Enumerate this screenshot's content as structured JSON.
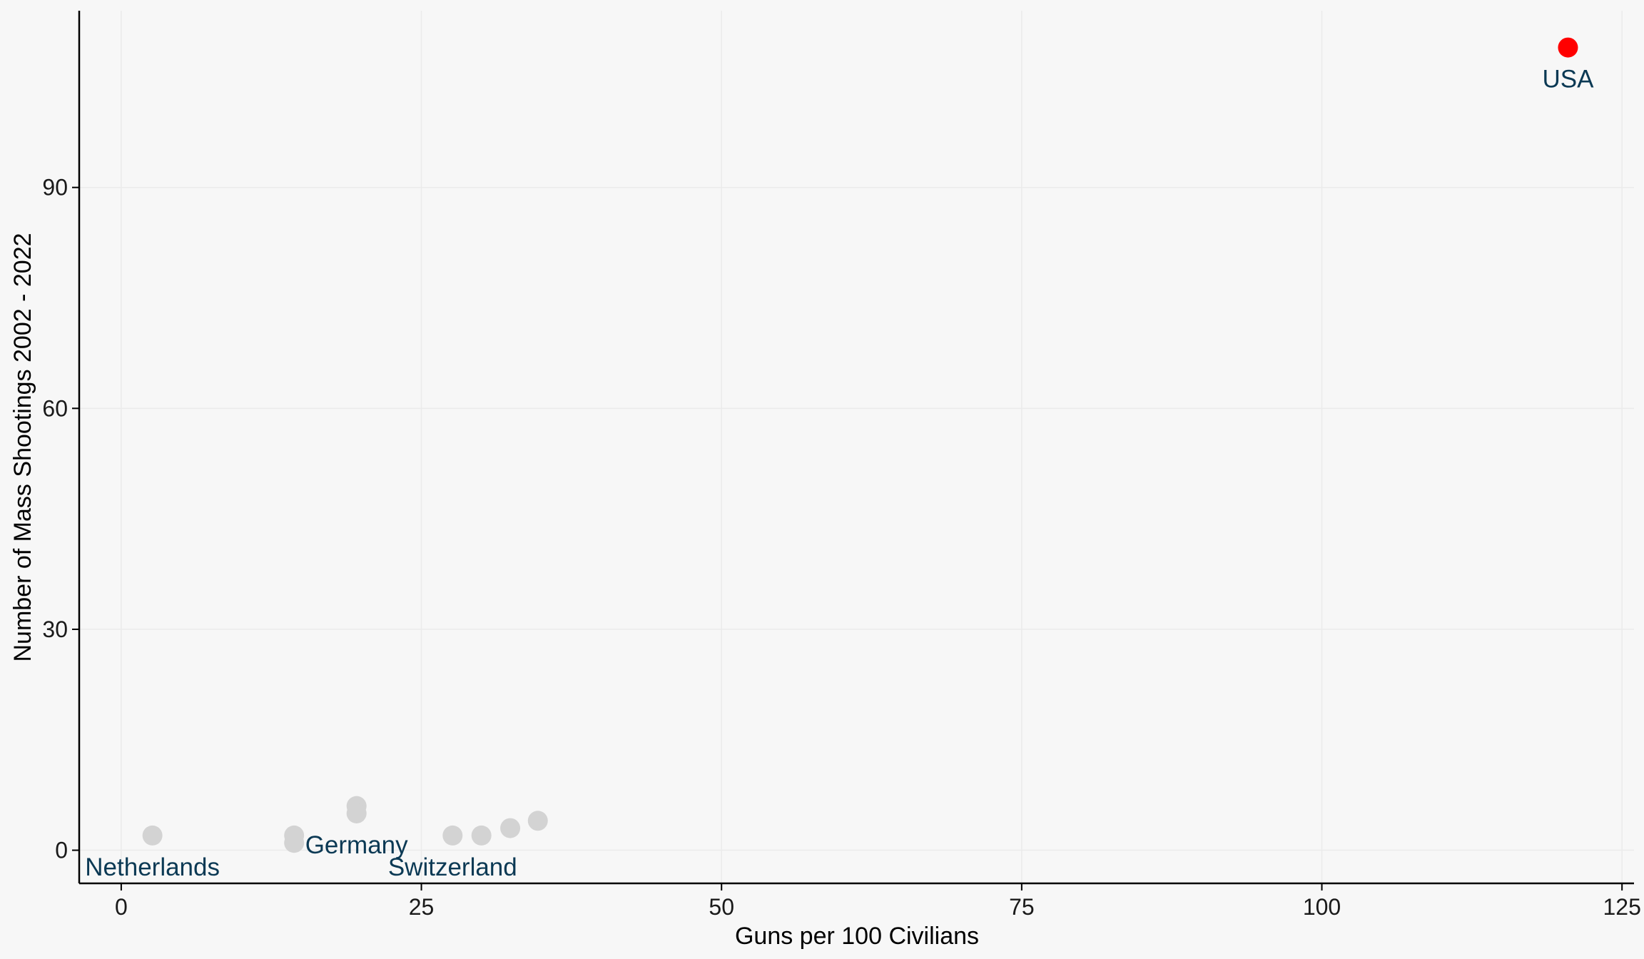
{
  "chart_data": {
    "type": "scatter",
    "title": "",
    "xlabel": "Guns per 100 Civilians",
    "ylabel": "Number of Mass Shootings 2002 - 2022",
    "xlim": [
      -3.5,
      126
    ],
    "ylim": [
      -4.5,
      114
    ],
    "x_ticks": [
      0,
      25,
      50,
      75,
      100,
      125
    ],
    "y_ticks": [
      0,
      30,
      60,
      90
    ],
    "grid": true,
    "legend": "none",
    "colors": {
      "background": "#f7f7f7",
      "grid": "#ebebeb",
      "axis": "#000000",
      "point_default": "#d3d3d3",
      "point_highlight": "#ff0000",
      "label": "#0b3954"
    },
    "points": [
      {
        "x": 120.5,
        "y": 109,
        "highlight": true
      },
      {
        "x": 34.7,
        "y": 4,
        "highlight": false
      },
      {
        "x": 32.4,
        "y": 3,
        "highlight": false
      },
      {
        "x": 30.0,
        "y": 2,
        "highlight": false
      },
      {
        "x": 27.6,
        "y": 2,
        "highlight": false
      },
      {
        "x": 19.6,
        "y": 6,
        "highlight": false
      },
      {
        "x": 19.6,
        "y": 5,
        "highlight": false
      },
      {
        "x": 14.4,
        "y": 2,
        "highlight": false
      },
      {
        "x": 14.4,
        "y": 1,
        "highlight": false
      },
      {
        "x": 2.6,
        "y": 2,
        "highlight": false
      }
    ],
    "annotations": [
      {
        "text": "USA",
        "x": 120.5,
        "y": 109
      },
      {
        "text": "Germany",
        "x": 19.6,
        "y": 5
      },
      {
        "text": "Switzerland",
        "x": 27.6,
        "y": 2
      },
      {
        "text": "Netherlands",
        "x": 2.6,
        "y": 2
      }
    ]
  }
}
